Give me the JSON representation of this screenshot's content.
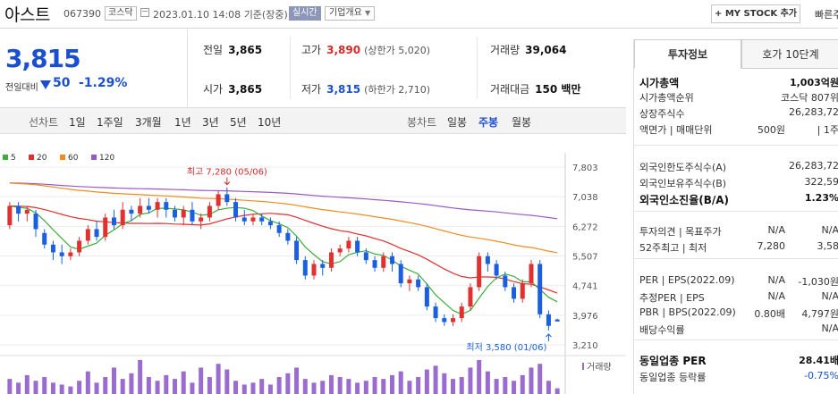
{
  "header": {
    "stock_name": "아스트",
    "stock_code": "067390",
    "market": "코스닥",
    "datetime": "2023.01.10 14:08",
    "basis": "기준(장중)",
    "realtime_label": "실시간",
    "overview_label": "기업개요",
    "mystock_label": "+ MY STOCK 추가",
    "quick_label": "빠른주"
  },
  "price": {
    "current": "3,815",
    "change_label": "전일대비",
    "change": "50",
    "change_pct": "-1.29%"
  },
  "stats": {
    "prev_close_label": "전일",
    "prev_close": "3,865",
    "high_label": "고가",
    "high": "3,890",
    "upper_limit": "(상한가 5,020)",
    "volume_label": "거래량",
    "volume": "39,064",
    "open_label": "시가",
    "open": "3,865",
    "low_label": "저가",
    "low": "3,815",
    "lower_limit": "(하한가 2,710)",
    "amount_label": "거래대금",
    "amount": "150 백만"
  },
  "toolbar": {
    "line_label": "선차트",
    "periods": [
      "1일",
      "1주일",
      "3개월",
      "1년",
      "3년",
      "5년",
      "10년"
    ],
    "candle_label": "봉차트",
    "candles": [
      "일봉",
      "주봉",
      "월봉"
    ],
    "active_candle": "주봉"
  },
  "chart_data": {
    "type": "candlestick",
    "ma_legend": [
      {
        "name": "5",
        "color": "#3cae3c"
      },
      {
        "name": "20",
        "color": "#e03030"
      },
      {
        "name": "60",
        "color": "#f08c1e"
      },
      {
        "name": "120",
        "color": "#9b59c6"
      }
    ],
    "yticks": [
      "7,803",
      "7,038",
      "6,272",
      "5,507",
      "4,741",
      "3,976",
      "3,210"
    ],
    "ylim": [
      3210,
      7803
    ],
    "high_annotation": "최고 7,280 (05/06)",
    "low_annotation": "최저 3,580 (01/06)",
    "volume_label": "거래량",
    "candles": [
      [
        6300,
        6800,
        6900,
        6200
      ],
      [
        6800,
        6600,
        6900,
        6400
      ],
      [
        6600,
        6700,
        6800,
        6400
      ],
      [
        6600,
        6200,
        6700,
        6000
      ],
      [
        6100,
        5800,
        6200,
        5700
      ],
      [
        5800,
        5600,
        5900,
        5400
      ],
      [
        5600,
        5500,
        5800,
        5300
      ],
      [
        5500,
        5600,
        5700,
        5400
      ],
      [
        5600,
        5900,
        6000,
        5500
      ],
      [
        5900,
        6200,
        6300,
        5800
      ],
      [
        6200,
        6000,
        6400,
        5900
      ],
      [
        6000,
        6500,
        6600,
        5900
      ],
      [
        6500,
        6300,
        6700,
        6200
      ],
      [
        6300,
        6700,
        6900,
        6200
      ],
      [
        6700,
        6600,
        6800,
        6400
      ],
      [
        6600,
        6800,
        7000,
        6500
      ],
      [
        6800,
        6700,
        7000,
        6600
      ],
      [
        6700,
        6900,
        7000,
        6500
      ],
      [
        6900,
        6700,
        7000,
        6500
      ],
      [
        6700,
        6500,
        6800,
        6400
      ],
      [
        6500,
        6700,
        6800,
        6300
      ],
      [
        6700,
        6400,
        6900,
        6300
      ],
      [
        6400,
        6500,
        6600,
        6200
      ],
      [
        6500,
        6800,
        6900,
        6400
      ],
      [
        6800,
        7100,
        7200,
        6700
      ],
      [
        7100,
        6900,
        7280,
        6800
      ],
      [
        6900,
        6500,
        7000,
        6400
      ],
      [
        6500,
        6400,
        6700,
        6300
      ],
      [
        6400,
        6500,
        6600,
        6300
      ],
      [
        6500,
        6400,
        6600,
        6300
      ],
      [
        6400,
        6300,
        6500,
        6200
      ],
      [
        6300,
        6100,
        6400,
        6000
      ],
      [
        6100,
        5900,
        6200,
        5800
      ],
      [
        5900,
        5400,
        6000,
        5300
      ],
      [
        5400,
        5000,
        5500,
        4900
      ],
      [
        5000,
        5300,
        5400,
        4900
      ],
      [
        5300,
        5200,
        5400,
        5000
      ],
      [
        5200,
        5600,
        5700,
        5100
      ],
      [
        5600,
        5700,
        5800,
        5500
      ],
      [
        5700,
        5900,
        6000,
        5600
      ],
      [
        5900,
        5600,
        6000,
        5500
      ],
      [
        5600,
        5400,
        5700,
        5300
      ],
      [
        5400,
        5200,
        5500,
        5100
      ],
      [
        5200,
        5500,
        5600,
        5100
      ],
      [
        5500,
        5300,
        5600,
        5100
      ],
      [
        5300,
        4800,
        5400,
        4700
      ],
      [
        4800,
        4900,
        5000,
        4600
      ],
      [
        4900,
        4700,
        5000,
        4600
      ],
      [
        4700,
        4200,
        4800,
        4100
      ],
      [
        4200,
        3900,
        4300,
        3800
      ],
      [
        3900,
        3800,
        4000,
        3700
      ],
      [
        3800,
        3900,
        4000,
        3700
      ],
      [
        3900,
        4200,
        4300,
        3800
      ],
      [
        4200,
        4700,
        4800,
        4100
      ],
      [
        4700,
        5500,
        5600,
        4600
      ],
      [
        5500,
        5300,
        5600,
        5100
      ],
      [
        5300,
        5000,
        5400,
        4900
      ],
      [
        5000,
        4700,
        5100,
        4600
      ],
      [
        4700,
        4400,
        4800,
        4300
      ],
      [
        4400,
        4800,
        4900,
        4300
      ],
      [
        4800,
        5300,
        5400,
        4700
      ],
      [
        5300,
        4000,
        5400,
        3900
      ],
      [
        4000,
        3700,
        4100,
        3580
      ],
      [
        3865,
        3815,
        3890,
        3815
      ]
    ],
    "volumes": [
      8,
      6,
      10,
      7,
      9,
      6,
      5,
      4,
      7,
      12,
      6,
      9,
      14,
      8,
      11,
      18,
      9,
      7,
      10,
      8,
      12,
      6,
      14,
      9,
      16,
      13,
      7,
      5,
      6,
      8,
      5,
      9,
      11,
      14,
      8,
      6,
      7,
      10,
      9,
      8,
      6,
      7,
      9,
      8,
      10,
      12,
      7,
      9,
      13,
      15,
      11,
      8,
      9,
      14,
      18,
      12,
      8,
      9,
      7,
      10,
      14,
      16,
      7,
      3
    ]
  },
  "right_panel": {
    "tabs": [
      "투자정보",
      "호가 10단계"
    ],
    "active_tab": "투자정보",
    "rows": [
      {
        "k": "시가총액",
        "v": "1,003억원",
        "bold": true
      },
      {
        "k": "시가총액순위",
        "v": "코스닥 807위"
      },
      {
        "k": "상장주식수",
        "v": "26,283,72"
      },
      {
        "k": "액면가 | 매매단위",
        "v1": "500원",
        "v2": "| 1주"
      },
      {
        "k": "외국인한도주식수(A)",
        "v": "26,283,72"
      },
      {
        "k": "외국인보유주식수(B)",
        "v": "322,59"
      },
      {
        "k": "외국인소진율(B/A)",
        "v": "1.23%",
        "bold": true
      },
      {
        "k": "투자의견 | 목표주가",
        "v1": "N/A",
        "v2": "N/A"
      },
      {
        "k": "52주최고 | 최저",
        "v1": "7,280",
        "v2": "3,58"
      },
      {
        "k": "PER | EPS(2022.09)",
        "v1": "N/A",
        "v2": "-1,030원"
      },
      {
        "k": "추정PER | EPS",
        "v1": "N/A",
        "v2": "N/A"
      },
      {
        "k": "PBR | BPS(2022.09)",
        "v1": "0.80배",
        "v2": "4,797원"
      },
      {
        "k": "배당수익률",
        "v": "N/A"
      },
      {
        "k": "동일업종 PER",
        "v": "28.41배",
        "bold": true
      },
      {
        "k": "동일업종 등락률",
        "v": "-0.75%",
        "blue": true
      }
    ]
  }
}
